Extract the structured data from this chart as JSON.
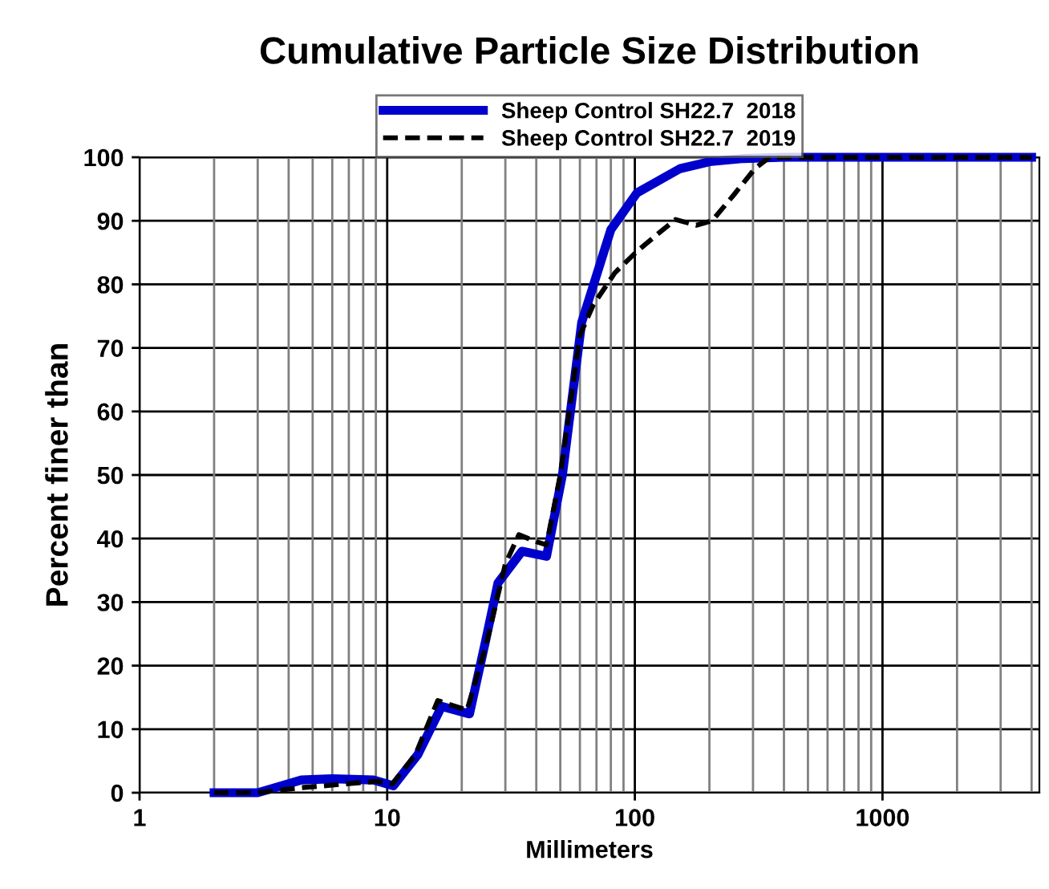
{
  "chart_data": {
    "type": "line",
    "title": "Cumulative Particle Size Distribution",
    "xlabel": "Millimeters",
    "ylabel": "Percent finer than",
    "log": "x",
    "xlim": [
      1,
      4300
    ],
    "xticks": [
      1,
      10,
      100,
      1000
    ],
    "ylim": [
      0,
      100
    ],
    "yticks": [
      0,
      10,
      20,
      30,
      40,
      50,
      60,
      70,
      80,
      90,
      100
    ],
    "grid": true,
    "legend": "top",
    "marker": "none",
    "series": [
      {
        "name": "Sheep Control SH22.7  2018",
        "color": "#0000cc",
        "line_style": "solid",
        "x": [
          2,
          3,
          4.5,
          6,
          8.8,
          10.6,
          13.3,
          16.6,
          21.5,
          25,
          28,
          35,
          44,
          51,
          61,
          80,
          102,
          152,
          200,
          275,
          400,
          4000
        ],
        "values": [
          0,
          0,
          2.0,
          2.2,
          2.0,
          1.1,
          6,
          13.6,
          12.4,
          24,
          33,
          38,
          37.2,
          50,
          74,
          88.6,
          94.4,
          98.2,
          99.3,
          99.8,
          100,
          100
        ]
      },
      {
        "name": "Sheep Control SH22.7  2019",
        "color": "#000000",
        "line_style": "dashed",
        "x": [
          2,
          3,
          4.5,
          6,
          9,
          10.5,
          13,
          16,
          21,
          25,
          30,
          34,
          40,
          44,
          50,
          60,
          68,
          83,
          102,
          120,
          146,
          177,
          205,
          250,
          305,
          350,
          4000
        ],
        "values": [
          0,
          0,
          0.8,
          1.2,
          1.8,
          1.4,
          6,
          14.5,
          13,
          23,
          36,
          40.6,
          39.5,
          39,
          50,
          72,
          76.8,
          81.8,
          85.2,
          87.5,
          90.2,
          89.3,
          90,
          94,
          98.2,
          100,
          100
        ]
      }
    ]
  }
}
